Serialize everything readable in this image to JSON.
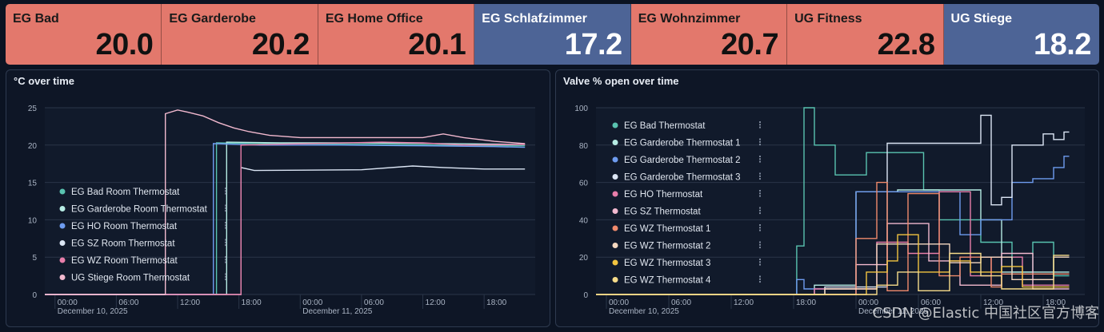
{
  "tiles": [
    {
      "name": "EG Bad",
      "value": "20.0",
      "color": "#e3786c"
    },
    {
      "name": "EG Garderobe",
      "value": "20.2",
      "color": "#e3786c"
    },
    {
      "name": "EG Home Office",
      "value": "20.1",
      "color": "#e3786c"
    },
    {
      "name": "EG Schlafzimmer",
      "value": "17.2",
      "color": "#4d6496"
    },
    {
      "name": "EG Wohnzimmer",
      "value": "20.7",
      "color": "#e3786c"
    },
    {
      "name": "UG Fitness",
      "value": "22.8",
      "color": "#e3786c"
    },
    {
      "name": "UG Stiege",
      "value": "18.2",
      "color": "#4d6496"
    }
  ],
  "panels": {
    "temp_title": "°C over time",
    "valve_title": "Valve % open over time"
  },
  "x_ticks": [
    {
      "t": "00:00",
      "h": 0
    },
    {
      "t": "06:00",
      "h": 6
    },
    {
      "t": "12:00",
      "h": 12
    },
    {
      "t": "18:00",
      "h": 18
    },
    {
      "t": "00:00",
      "h": 24
    },
    {
      "t": "06:00",
      "h": 30
    },
    {
      "t": "12:00",
      "h": 36
    },
    {
      "t": "18:00",
      "h": 42
    }
  ],
  "x_dates": [
    {
      "t": "December 10, 2025",
      "h": 0
    },
    {
      "t": "December 11, 2025",
      "h": 24
    }
  ],
  "watermark": "CSDN @Elastic 中国社区官方博客",
  "chart_data": [
    {
      "type": "line",
      "title": "°C over time",
      "x_unit": "hours since December 10, 2025 00:00",
      "xlim": [
        -1,
        47
      ],
      "ylim": [
        0,
        25
      ],
      "yticks": [
        0,
        5,
        10,
        15,
        20,
        25
      ],
      "grid": true,
      "legend_position": "bottom-left",
      "series": [
        {
          "name": "EG Bad Room Thermostat",
          "color": "#59c3b0",
          "points": [
            [
              -1,
              0
            ],
            [
              15.8,
              0
            ],
            [
              15.8,
              20.3
            ],
            [
              20,
              20.2
            ],
            [
              30,
              20.1
            ],
            [
              38,
              20.0
            ],
            [
              46,
              19.9
            ]
          ]
        },
        {
          "name": "EG Garderobe Room Thermostat",
          "color": "#b6ece4",
          "points": [
            [
              -1,
              0
            ],
            [
              16.8,
              0
            ],
            [
              16.8,
              20.4
            ],
            [
              22,
              20.3
            ],
            [
              30,
              20.3
            ],
            [
              38,
              20.2
            ],
            [
              46,
              20.1
            ]
          ]
        },
        {
          "name": "EG HO Room Thermostat",
          "color": "#6e9cf0",
          "points": [
            [
              -1,
              0
            ],
            [
              15.5,
              0
            ],
            [
              15.5,
              20.2
            ],
            [
              20,
              20.0
            ],
            [
              28,
              20.0
            ],
            [
              36,
              19.9
            ],
            [
              43,
              19.8
            ],
            [
              46,
              19.7
            ]
          ]
        },
        {
          "name": "EG SZ Room Thermostat",
          "color": "#dce6f5",
          "points": [
            [
              -1,
              0
            ],
            [
              18.2,
              0
            ],
            [
              18.2,
              17.0
            ],
            [
              19.5,
              16.6
            ],
            [
              30,
              16.7
            ],
            [
              35,
              17.2
            ],
            [
              38,
              17.0
            ],
            [
              42,
              16.8
            ],
            [
              46,
              16.8
            ]
          ]
        },
        {
          "name": "EG WZ Room Thermostat",
          "color": "#e87eaa",
          "points": [
            [
              -1,
              0
            ],
            [
              18.2,
              0
            ],
            [
              18.2,
              20.0
            ],
            [
              25,
              20.2
            ],
            [
              32,
              20.4
            ],
            [
              36,
              20.3
            ],
            [
              40,
              20.0
            ],
            [
              46,
              20.1
            ]
          ]
        },
        {
          "name": "UG Stiege Room Thermostat",
          "color": "#f2b9cf",
          "points": [
            [
              -1,
              0
            ],
            [
              10.8,
              0
            ],
            [
              10.8,
              24.2
            ],
            [
              12,
              24.7
            ],
            [
              13,
              24.4
            ],
            [
              14.5,
              23.9
            ],
            [
              16,
              23.0
            ],
            [
              17.5,
              22.3
            ],
            [
              19,
              21.8
            ],
            [
              21,
              21.3
            ],
            [
              24,
              21.0
            ],
            [
              30,
              21.0
            ],
            [
              36,
              21.0
            ],
            [
              38,
              21.5
            ],
            [
              40,
              21.0
            ],
            [
              43,
              20.5
            ],
            [
              46,
              20.2
            ]
          ]
        }
      ]
    },
    {
      "type": "line",
      "title": "Valve % open over time",
      "x_unit": "hours since December 10, 2025 00:00",
      "xlim": [
        -1,
        46
      ],
      "ylim": [
        0,
        100
      ],
      "yticks": [
        0,
        20,
        40,
        60,
        80,
        100
      ],
      "grid": true,
      "legend_position": "top-left",
      "series": [
        {
          "name": "EG Bad Thermostat",
          "color": "#59c3b0",
          "points": [
            [
              -1,
              0
            ],
            [
              18.3,
              0
            ],
            [
              18.3,
              26
            ],
            [
              19,
              26
            ],
            [
              19,
              100
            ],
            [
              20,
              100
            ],
            [
              20,
              80
            ],
            [
              22,
              80
            ],
            [
              22,
              64
            ],
            [
              25,
              64
            ],
            [
              25,
              76
            ],
            [
              30.5,
              76
            ],
            [
              30.5,
              56
            ],
            [
              32,
              56
            ],
            [
              32,
              40
            ],
            [
              36,
              40
            ],
            [
              36,
              28
            ],
            [
              39,
              28
            ],
            [
              39,
              12
            ],
            [
              41,
              12
            ],
            [
              41,
              28
            ],
            [
              43,
              28
            ],
            [
              43,
              10
            ],
            [
              44.5,
              10
            ]
          ]
        },
        {
          "name": "EG Garderobe Thermostat 1",
          "color": "#b6ece4",
          "points": [
            [
              -1,
              0
            ],
            [
              20,
              0
            ],
            [
              20,
              5
            ],
            [
              24,
              5
            ],
            [
              24,
              55
            ],
            [
              28,
              55
            ],
            [
              28,
              56
            ],
            [
              36,
              56
            ],
            [
              36,
              40
            ],
            [
              38,
              40
            ],
            [
              38,
              12
            ],
            [
              44.5,
              12
            ]
          ]
        },
        {
          "name": "EG Garderobe Thermostat 2",
          "color": "#6e9cf0",
          "points": [
            [
              -1,
              0
            ],
            [
              18.3,
              0
            ],
            [
              18.3,
              8
            ],
            [
              19,
              8
            ],
            [
              19,
              3
            ],
            [
              24,
              3
            ],
            [
              24,
              55
            ],
            [
              34,
              55
            ],
            [
              34,
              32
            ],
            [
              36,
              32
            ],
            [
              36,
              40
            ],
            [
              39,
              40
            ],
            [
              39,
              60
            ],
            [
              41,
              60
            ],
            [
              41,
              62
            ],
            [
              43,
              62
            ],
            [
              43,
              68
            ],
            [
              44,
              68
            ],
            [
              44,
              74
            ],
            [
              44.5,
              74
            ]
          ]
        },
        {
          "name": "EG Garderobe Thermostat 3",
          "color": "#dce6f5",
          "points": [
            [
              -1,
              0
            ],
            [
              21,
              0
            ],
            [
              21,
              4
            ],
            [
              27,
              4
            ],
            [
              27,
              81
            ],
            [
              36,
              81
            ],
            [
              36,
              96
            ],
            [
              37,
              96
            ],
            [
              37,
              48
            ],
            [
              38,
              48
            ],
            [
              38,
              52
            ],
            [
              39,
              52
            ],
            [
              39,
              80
            ],
            [
              42,
              80
            ],
            [
              42,
              86
            ],
            [
              43,
              86
            ],
            [
              43,
              83
            ],
            [
              44,
              83
            ],
            [
              44,
              87
            ],
            [
              44.5,
              87
            ]
          ]
        },
        {
          "name": "EG HO Thermostat",
          "color": "#e87eaa",
          "points": [
            [
              -1,
              0
            ],
            [
              20,
              0
            ],
            [
              20,
              3
            ],
            [
              26,
              3
            ],
            [
              26,
              28
            ],
            [
              29,
              28
            ],
            [
              29,
              22
            ],
            [
              32,
              22
            ],
            [
              32,
              55
            ],
            [
              35,
              55
            ],
            [
              35,
              10
            ],
            [
              37,
              10
            ],
            [
              37,
              20
            ],
            [
              40,
              20
            ],
            [
              40,
              5
            ],
            [
              44.5,
              5
            ]
          ]
        },
        {
          "name": "EG SZ Thermostat",
          "color": "#f2b9cf",
          "points": [
            [
              -1,
              0
            ],
            [
              24,
              0
            ],
            [
              24,
              16
            ],
            [
              27,
              16
            ],
            [
              27,
              38
            ],
            [
              31,
              38
            ],
            [
              31,
              18
            ],
            [
              34,
              18
            ],
            [
              34,
              5
            ],
            [
              38,
              5
            ],
            [
              38,
              22
            ],
            [
              41,
              22
            ],
            [
              41,
              3
            ],
            [
              44.5,
              3
            ]
          ]
        },
        {
          "name": "EG WZ Thermostat 1",
          "color": "#f08a6c",
          "points": [
            [
              -1,
              0
            ],
            [
              24,
              0
            ],
            [
              24,
              30
            ],
            [
              26,
              30
            ],
            [
              26,
              60
            ],
            [
              27,
              60
            ],
            [
              27,
              2
            ],
            [
              29,
              2
            ],
            [
              29,
              54
            ],
            [
              32,
              54
            ],
            [
              32,
              10
            ],
            [
              34,
              10
            ],
            [
              34,
              20
            ],
            [
              37,
              20
            ],
            [
              37,
              4
            ],
            [
              38,
              4
            ],
            [
              38,
              11
            ],
            [
              44.5,
              11
            ]
          ]
        },
        {
          "name": "EG WZ Thermostat 2",
          "color": "#f5d8c0",
          "points": [
            [
              -1,
              0
            ],
            [
              21,
              0
            ],
            [
              21,
              3
            ],
            [
              26,
              3
            ],
            [
              26,
              27
            ],
            [
              33,
              27
            ],
            [
              33,
              17
            ],
            [
              36,
              17
            ],
            [
              36,
              20
            ],
            [
              39,
              20
            ],
            [
              39,
              8
            ],
            [
              43,
              8
            ],
            [
              43,
              20
            ],
            [
              44.5,
              20
            ]
          ]
        },
        {
          "name": "EG WZ Thermostat 3",
          "color": "#f2c440",
          "points": [
            [
              -1,
              0
            ],
            [
              25,
              0
            ],
            [
              25,
              12
            ],
            [
              27,
              12
            ],
            [
              27,
              18
            ],
            [
              28,
              18
            ],
            [
              28,
              32
            ],
            [
              30,
              32
            ],
            [
              30,
              12
            ],
            [
              33,
              12
            ],
            [
              33,
              18
            ],
            [
              35,
              18
            ],
            [
              35,
              12
            ],
            [
              38,
              12
            ],
            [
              38,
              15
            ],
            [
              40,
              15
            ],
            [
              40,
              4
            ],
            [
              44.5,
              4
            ]
          ]
        },
        {
          "name": "EG WZ Thermostat 4",
          "color": "#f7dc8a",
          "points": [
            [
              -1,
              0
            ],
            [
              26,
              0
            ],
            [
              26,
              5
            ],
            [
              28,
              5
            ],
            [
              28,
              12
            ],
            [
              30,
              12
            ],
            [
              30,
              2
            ],
            [
              33,
              2
            ],
            [
              33,
              22
            ],
            [
              36,
              22
            ],
            [
              36,
              10
            ],
            [
              38,
              10
            ],
            [
              38,
              3
            ],
            [
              43,
              3
            ],
            [
              43,
              21
            ],
            [
              44.5,
              21
            ]
          ]
        }
      ]
    }
  ]
}
